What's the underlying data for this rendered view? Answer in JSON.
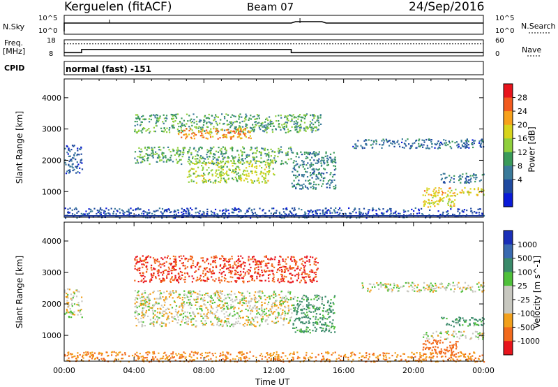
{
  "header": {
    "station": "Kerguelen (fitACF)",
    "beam": "Beam 07",
    "date": "24/Sep/2016"
  },
  "top_panels": {
    "nsky_label": "N.Sky",
    "nsky_ticks_left": [
      "10^5",
      "10^0"
    ],
    "nsky_ticks_right": [
      "10^5",
      "10^0"
    ],
    "nsearch_label": "N.Search",
    "freq_label_line1": "Freq.",
    "freq_label_line2": "[MHz]",
    "freq_ticks_left": [
      "18",
      "8"
    ],
    "nave_ticks_right": [
      "60",
      "0"
    ],
    "nave_label": "Nave",
    "cpid_label": "CPID",
    "cpid_value": "normal (fast) -151"
  },
  "power_panel": {
    "ylabel": "Slant Range [km]",
    "colorbar_label": "Power [dB]",
    "colorbar_ticks": [
      "28",
      "24",
      "20",
      "16",
      "12",
      "8",
      "4"
    ],
    "colorbar_colors": [
      "#e8141c",
      "#f25a1e",
      "#f7a11c",
      "#d8d41c",
      "#8fcf3c",
      "#3a9a5a",
      "#3a7a9a",
      "#1f4aa0",
      "#0a1ad8"
    ]
  },
  "velocity_panel": {
    "ylabel": "Slant Range [km]",
    "colorbar_label": "Velocity [m s^-1]",
    "colorbar_ticks": [
      "1000",
      "500",
      "100",
      "25",
      "-25",
      "-100",
      "-500",
      "-1000"
    ],
    "colorbar_colors": [
      "#1a2fb8",
      "#3a6ab0",
      "#3a8a6a",
      "#4fc03a",
      "#c8c8c0",
      "#c8c8c0",
      "#f2a01c",
      "#f26a1c",
      "#e8141c"
    ]
  },
  "x_axis": {
    "label": "Time UT",
    "ticks": [
      "00:00",
      "04:00",
      "08:00",
      "12:00",
      "16:00",
      "20:00",
      "00:00"
    ]
  },
  "chart_data": {
    "type": "heatmap",
    "title": "Kerguelen (fitACF)  Beam 07  24/Sep/2016",
    "xlabel": "Time UT",
    "ylabel": "Slant Range [km]",
    "xlim": [
      "00:00",
      "24:00"
    ],
    "ylim": [
      180,
      4600
    ],
    "y_ticks": [
      1000,
      2000,
      3000,
      4000
    ],
    "frequency_MHz": [
      {
        "start": 0.0,
        "end": 1.0,
        "value": 10
      },
      {
        "start": 1.0,
        "end": 13.0,
        "value": 12
      },
      {
        "start": 13.0,
        "end": 24.0,
        "value": 10
      }
    ],
    "nave_level": 45,
    "power_regions": [
      {
        "t0": 4.0,
        "t1": 14.7,
        "r0": 2900,
        "r1": 3500,
        "level": 14
      },
      {
        "t0": 6.5,
        "t1": 10.7,
        "r0": 2700,
        "r1": 3050,
        "level": 24
      },
      {
        "t0": 4.0,
        "t1": 13.0,
        "r0": 1900,
        "r1": 2450,
        "level": 14
      },
      {
        "t0": 7.0,
        "t1": 12.0,
        "r0": 1300,
        "r1": 2000,
        "level": 18
      },
      {
        "t0": 13.0,
        "t1": 15.5,
        "r0": 1100,
        "r1": 2300,
        "level": 11
      },
      {
        "t0": 0.0,
        "t1": 24.0,
        "r0": 180,
        "r1": 500,
        "level": 7
      },
      {
        "t0": 0.0,
        "t1": 1.0,
        "r0": 1600,
        "r1": 2500,
        "level": 8
      },
      {
        "t0": 20.5,
        "t1": 24.0,
        "r0": 900,
        "r1": 1150,
        "level": 22
      },
      {
        "t0": 20.5,
        "t1": 22.5,
        "r0": 500,
        "r1": 900,
        "level": 20
      },
      {
        "t0": 21.5,
        "t1": 24.0,
        "r0": 1300,
        "r1": 1600,
        "level": 10
      },
      {
        "t0": 16.5,
        "t1": 24.0,
        "r0": 2400,
        "r1": 2700,
        "level": 9
      }
    ],
    "velocity_regions": [
      {
        "t0": 4.0,
        "t1": 14.5,
        "r0": 2700,
        "r1": 3550,
        "level": -500
      },
      {
        "t0": 4.0,
        "t1": 13.0,
        "r0": 1300,
        "r1": 2450,
        "level": 0
      },
      {
        "t0": 13.0,
        "t1": 15.5,
        "r0": 1100,
        "r1": 2300,
        "level": 80
      },
      {
        "t0": 0.0,
        "t1": 24.0,
        "r0": 180,
        "r1": 500,
        "level": -100
      },
      {
        "t0": 0.0,
        "t1": 1.0,
        "r0": 1600,
        "r1": 2500,
        "level": 0
      },
      {
        "t0": 20.5,
        "t1": 24.0,
        "r0": 900,
        "r1": 1150,
        "level": 0
      },
      {
        "t0": 20.5,
        "t1": 22.5,
        "r0": 400,
        "r1": 900,
        "level": -300
      },
      {
        "t0": 21.5,
        "t1": 24.0,
        "r0": 1300,
        "r1": 1600,
        "level": 80
      },
      {
        "t0": 17.0,
        "t1": 24.0,
        "r0": 2400,
        "r1": 2700,
        "level": 0
      }
    ]
  }
}
